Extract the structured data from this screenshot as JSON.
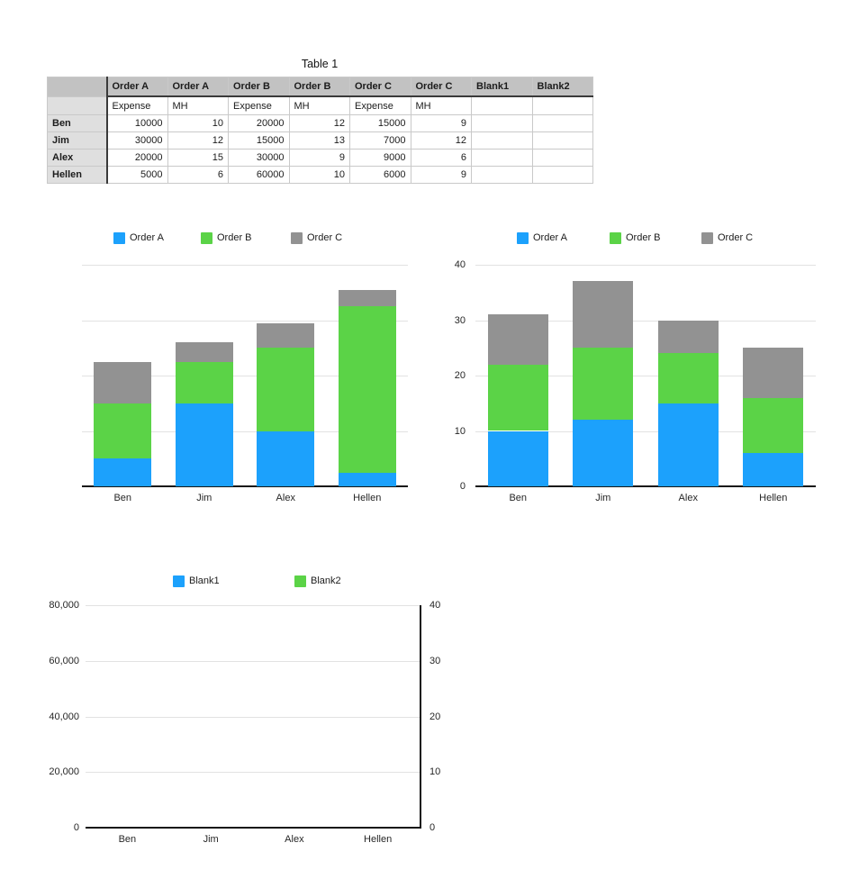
{
  "table": {
    "title": "Table 1",
    "columns_header_top": [
      "",
      "Order A",
      "Order A",
      "Order B",
      "Order B",
      "Order C",
      "Order C",
      "Blank1",
      "Blank2"
    ],
    "columns_header_sub": [
      "",
      "Expense",
      "MH",
      "Expense",
      "MH",
      "Expense",
      "MH",
      "",
      ""
    ],
    "rows": [
      {
        "label": "Ben",
        "cells": [
          "10000",
          "10",
          "20000",
          "12",
          "15000",
          "9",
          "",
          ""
        ]
      },
      {
        "label": "Jim",
        "cells": [
          "30000",
          "12",
          "15000",
          "13",
          "7000",
          "12",
          "",
          ""
        ]
      },
      {
        "label": "Alex",
        "cells": [
          "20000",
          "15",
          "30000",
          "9",
          "9000",
          "6",
          "",
          ""
        ]
      },
      {
        "label": "Hellen",
        "cells": [
          "5000",
          "6",
          "60000",
          "10",
          "6000",
          "9",
          "",
          ""
        ]
      }
    ]
  },
  "colors": {
    "series_blue": "#1CA1FC",
    "series_green": "#5BD347",
    "series_gray": "#929292",
    "gridline": "#E2E2E2",
    "axis": "#161616",
    "table_header_bg": "#C2C2C2",
    "table_rowhead_bg": "#DFDFDF"
  },
  "chart_data": [
    {
      "id": "expense-stacked",
      "type": "bar",
      "stacked": true,
      "categories": [
        "Ben",
        "Jim",
        "Alex",
        "Hellen"
      ],
      "series": [
        {
          "name": "Order A",
          "color": "#1CA1FC",
          "values": [
            10000,
            30000,
            20000,
            5000
          ]
        },
        {
          "name": "Order B",
          "color": "#5BD347",
          "values": [
            20000,
            15000,
            30000,
            60000
          ]
        },
        {
          "name": "Order C",
          "color": "#929292",
          "values": [
            15000,
            7000,
            9000,
            6000
          ]
        }
      ],
      "ylim": [
        0,
        80000
      ],
      "y_tick_labels_left": [],
      "y_tick_labels_right": [],
      "grid": true,
      "legend_position": "top"
    },
    {
      "id": "mh-stacked",
      "type": "bar",
      "stacked": true,
      "categories": [
        "Ben",
        "Jim",
        "Alex",
        "Hellen"
      ],
      "series": [
        {
          "name": "Order A",
          "color": "#1CA1FC",
          "values": [
            10,
            12,
            15,
            6
          ]
        },
        {
          "name": "Order B",
          "color": "#5BD347",
          "values": [
            12,
            13,
            9,
            10
          ]
        },
        {
          "name": "Order C",
          "color": "#929292",
          "values": [
            9,
            12,
            6,
            9
          ]
        }
      ],
      "ylim": [
        0,
        40
      ],
      "y_tick_labels_left": [
        "0",
        "10",
        "20",
        "30",
        "40"
      ],
      "y_tick_labels_right": [],
      "grid": true,
      "legend_position": "top"
    },
    {
      "id": "blank-dual-axis",
      "type": "bar",
      "stacked": true,
      "categories": [
        "Ben",
        "Jim",
        "Alex",
        "Hellen"
      ],
      "series": [
        {
          "name": "Blank1",
          "color": "#1CA1FC",
          "values": []
        },
        {
          "name": "Blank2",
          "color": "#5BD347",
          "values": []
        }
      ],
      "ylim": [
        0,
        80000
      ],
      "ylim_right": [
        0,
        40
      ],
      "y_tick_labels_left": [
        "0",
        "20,000",
        "40,000",
        "60,000",
        "80,000"
      ],
      "y_tick_labels_right": [
        "0",
        "10",
        "20",
        "30",
        "40"
      ],
      "grid": true,
      "legend_position": "top"
    }
  ]
}
